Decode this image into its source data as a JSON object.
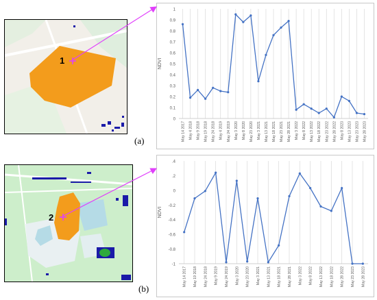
{
  "figure": {
    "panel_a": {
      "label": "(a)",
      "marker_label": "1"
    },
    "panel_b": {
      "label": "(b)",
      "marker_label": "2"
    }
  },
  "colors": {
    "series": "#4472c4",
    "marker": "#e040fb",
    "field": "#f39c1c",
    "map_background": "#f2efe9",
    "map_land": "#cdeecb",
    "water": "#b5dbe6",
    "detection_blue": "#1a1aa8"
  },
  "chart_data": [
    {
      "type": "line",
      "title": "",
      "xlabel": "",
      "ylabel": "NDVI",
      "ylim": [
        0,
        1
      ],
      "yticks": [
        "0",
        "0.1",
        "0.2",
        "0.3",
        "0.4",
        "0.5",
        "0.6",
        "0.7",
        "0.8",
        "0.9",
        "1"
      ],
      "grid": "vertical",
      "categories": [
        "May 14 2017",
        "May 4 2018",
        "May 9 2018",
        "May 19 2018",
        "May 24 2018",
        "May 4 2019",
        "May 24 2019",
        "May 3 2020",
        "May 8 2020",
        "May 23 2020",
        "May 3 2021",
        "May 13 2021",
        "May 18 2021",
        "May 23 2021",
        "May 28 2021",
        "May 3 2022",
        "May 8 2022",
        "May 13 2022",
        "May 18 2022",
        "May 23 2022",
        "May 28 2022",
        "May 8 2023",
        "May 13 2023",
        "May 23 2023",
        "May 28 2023"
      ],
      "series": [
        {
          "values": [
            0.86,
            0.19,
            0.26,
            0.18,
            0.28,
            0.25,
            0.24,
            0.95,
            0.88,
            0.94,
            0.34,
            0.58,
            0.76,
            0.83,
            0.89,
            0.08,
            0.13,
            0.09,
            0.05,
            0.09,
            0.01,
            0.2,
            0.16,
            0.05,
            0.04
          ]
        }
      ]
    },
    {
      "type": "line",
      "title": "",
      "xlabel": "",
      "ylabel": "NDVI",
      "ylim": [
        -1,
        0.4
      ],
      "yticks": [
        ".4",
        ".2",
        "0",
        "-0.2",
        "-0.4",
        "-0.6",
        "-0.8",
        "-1"
      ],
      "grid": "vertical",
      "categories": [
        "May 14 2017",
        "May 19 2018",
        "May 24 2018",
        "May 9 2019",
        "May 24 2019",
        "May 3 2020",
        "May 23 2020",
        "May 3 2021",
        "May 13 2021",
        "May 18 2021",
        "May 28 2021",
        "May 3 2022",
        "May 8 2022",
        "May 13 2022",
        "May 18 2022",
        "May 28 2022",
        "May 23 2023",
        "May 28 2023"
      ],
      "series": [
        {
          "values": [
            -0.57,
            -0.11,
            -0.01,
            0.24,
            -0.98,
            0.13,
            -0.97,
            -0.11,
            -0.98,
            -0.75,
            -0.08,
            0.23,
            0.03,
            -0.22,
            -0.28,
            0.03,
            -1.0,
            -1.0
          ]
        }
      ]
    }
  ]
}
